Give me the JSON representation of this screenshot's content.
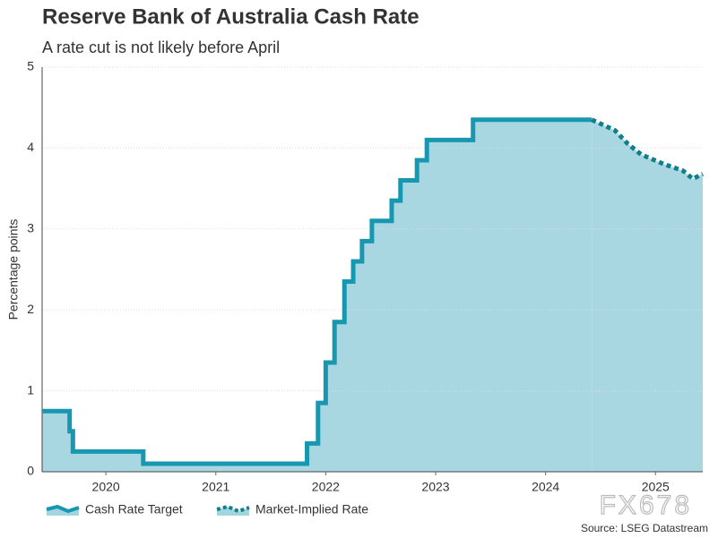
{
  "chart_data": {
    "type": "line",
    "title": "Reserve Bank of Australia Cash Rate",
    "subtitle": "A rate cut is not likely before April",
    "ylabel": "Percentage points",
    "source": "Source: LSEG Datastream",
    "watermark": "FX678",
    "xlim": [
      2019.92,
      2025.93
    ],
    "xticks": [
      {
        "value": 2020.5,
        "label": "2020"
      },
      {
        "value": 2021.5,
        "label": "2021"
      },
      {
        "value": 2022.5,
        "label": "2022"
      },
      {
        "value": 2023.5,
        "label": "2023"
      },
      {
        "value": 2024.5,
        "label": "2024"
      },
      {
        "value": 2025.5,
        "label": "2025"
      }
    ],
    "ylim": [
      0,
      5
    ],
    "yticks": [
      0,
      1,
      2,
      3,
      4,
      5
    ],
    "grid": true,
    "area_color": "#a3d5e0",
    "series": [
      {
        "name": "Cash Rate Target",
        "color": "#1797b0",
        "style": "solid",
        "x": [
          2019.92,
          2020.17,
          2020.17,
          2020.2,
          2020.2,
          2020.84,
          2020.84,
          2022.33,
          2022.33,
          2022.43,
          2022.43,
          2022.5,
          2022.5,
          2022.58,
          2022.58,
          2022.67,
          2022.67,
          2022.75,
          2022.75,
          2022.83,
          2022.83,
          2022.92,
          2022.92,
          2023.1,
          2023.1,
          2023.18,
          2023.18,
          2023.33,
          2023.33,
          2023.42,
          2023.42,
          2023.84,
          2023.84,
          2024.92
        ],
        "values": [
          0.75,
          0.75,
          0.5,
          0.5,
          0.25,
          0.25,
          0.1,
          0.1,
          0.35,
          0.35,
          0.85,
          0.85,
          1.35,
          1.35,
          1.85,
          1.85,
          2.35,
          2.35,
          2.6,
          2.6,
          2.85,
          2.85,
          3.1,
          3.1,
          3.35,
          3.35,
          3.6,
          3.6,
          3.85,
          3.85,
          4.1,
          4.1,
          4.35,
          4.35
        ]
      },
      {
        "name": "Market-Implied Rate",
        "color": "#117f8a",
        "style": "dotted",
        "x": [
          2024.92,
          2025.13,
          2025.25,
          2025.37,
          2025.58,
          2025.75,
          2025.84,
          2025.93
        ],
        "values": [
          4.35,
          4.22,
          4.05,
          3.92,
          3.8,
          3.72,
          3.62,
          3.68
        ]
      }
    ]
  }
}
